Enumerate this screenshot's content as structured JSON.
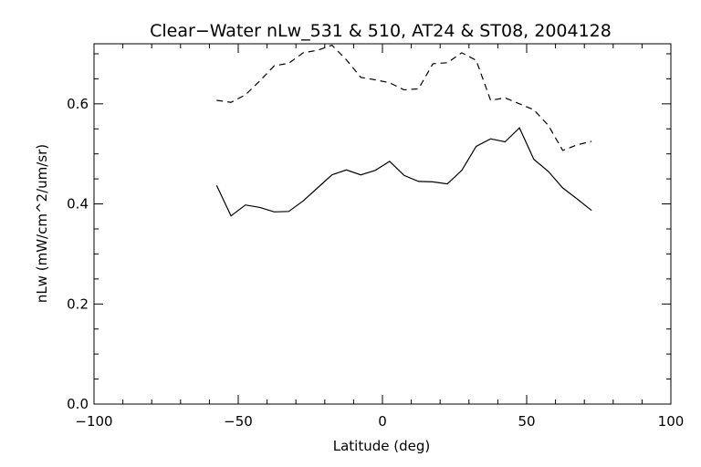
{
  "chart_data": {
    "type": "line",
    "title": "Clear−Water nLw_531 & 510, AT24 & ST08, 2004128",
    "xlabel": "Latitude (deg)",
    "ylabel": "nLw (mW/cm^2/um/sr)",
    "xlim": [
      -100,
      100
    ],
    "ylim": [
      0.0,
      0.72
    ],
    "xticks": [
      -100,
      -50,
      0,
      50,
      100
    ],
    "xtick_labels": [
      "−100",
      "−50",
      "0",
      "50",
      "100"
    ],
    "yticks": [
      0.0,
      0.2,
      0.4,
      0.6
    ],
    "ytick_labels": [
      "0.0",
      "0.2",
      "0.4",
      "0.6"
    ],
    "grid": false,
    "legend": "none",
    "series": [
      {
        "style": "solid",
        "color": "#000000",
        "x": [
          -57.5,
          -52.5,
          -47.5,
          -42.5,
          -37.5,
          -32.5,
          -27.5,
          -22.5,
          -17.5,
          -12.5,
          -7.5,
          -2.5,
          2.5,
          7.5,
          12.5,
          17.5,
          22.5,
          27.5,
          32.5,
          37.5,
          42.5,
          47.5,
          52.5,
          57.5,
          62.5,
          67.5,
          72.5
        ],
        "y": [
          0.437,
          0.376,
          0.398,
          0.393,
          0.384,
          0.385,
          0.406,
          0.432,
          0.458,
          0.468,
          0.458,
          0.467,
          0.485,
          0.457,
          0.445,
          0.444,
          0.44,
          0.467,
          0.515,
          0.53,
          0.524,
          0.552,
          0.489,
          0.465,
          0.432,
          0.41,
          0.387
        ]
      },
      {
        "style": "dashed",
        "color": "#000000",
        "x": [
          -57.5,
          -52.5,
          -47.5,
          -42.5,
          -37.5,
          -32.5,
          -27.5,
          -22.5,
          -17.5,
          -12.5,
          -7.5,
          -2.5,
          2.5,
          7.5,
          12.5,
          17.5,
          22.5,
          27.5,
          32.5,
          37.5,
          42.5,
          47.5,
          52.5,
          57.5,
          62.5,
          67.5,
          72.5
        ],
        "y": [
          0.607,
          0.603,
          0.618,
          0.646,
          0.676,
          0.681,
          0.702,
          0.707,
          0.717,
          0.688,
          0.653,
          0.648,
          0.642,
          0.628,
          0.63,
          0.68,
          0.682,
          0.702,
          0.687,
          0.607,
          0.612,
          0.6,
          0.588,
          0.557,
          0.507,
          0.518,
          0.525
        ]
      }
    ]
  }
}
